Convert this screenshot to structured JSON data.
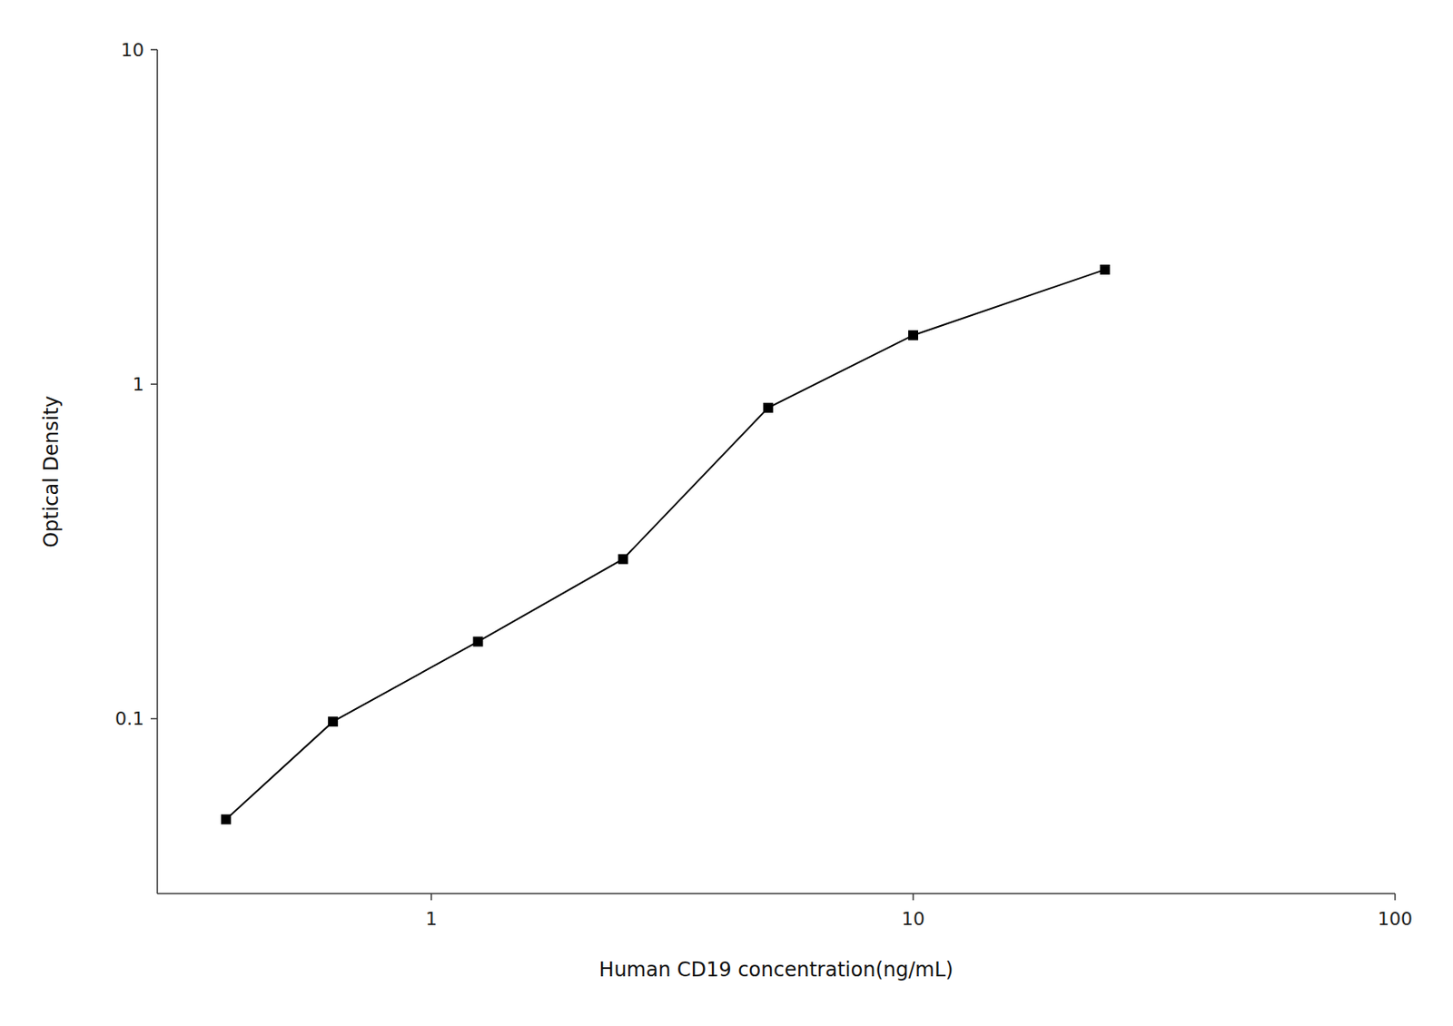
{
  "chart_data": {
    "type": "line",
    "x": [
      0.375,
      0.625,
      1.25,
      2.5,
      5.0,
      10.0,
      25.0
    ],
    "values": [
      0.05,
      0.098,
      0.17,
      0.3,
      0.85,
      1.4,
      2.2
    ],
    "x_label": "Human CD19 concentration(ng/mL)",
    "y_label": "Optical Density",
    "log": true,
    "xlim": [
      0.27,
      100.0
    ],
    "ylim": [
      0.03,
      10.0
    ],
    "xticks": [
      1,
      10,
      100
    ],
    "yticks": [
      0.1,
      1,
      10
    ],
    "marker": "square",
    "line_style": "solid",
    "color": "#000000",
    "grid": false
  }
}
